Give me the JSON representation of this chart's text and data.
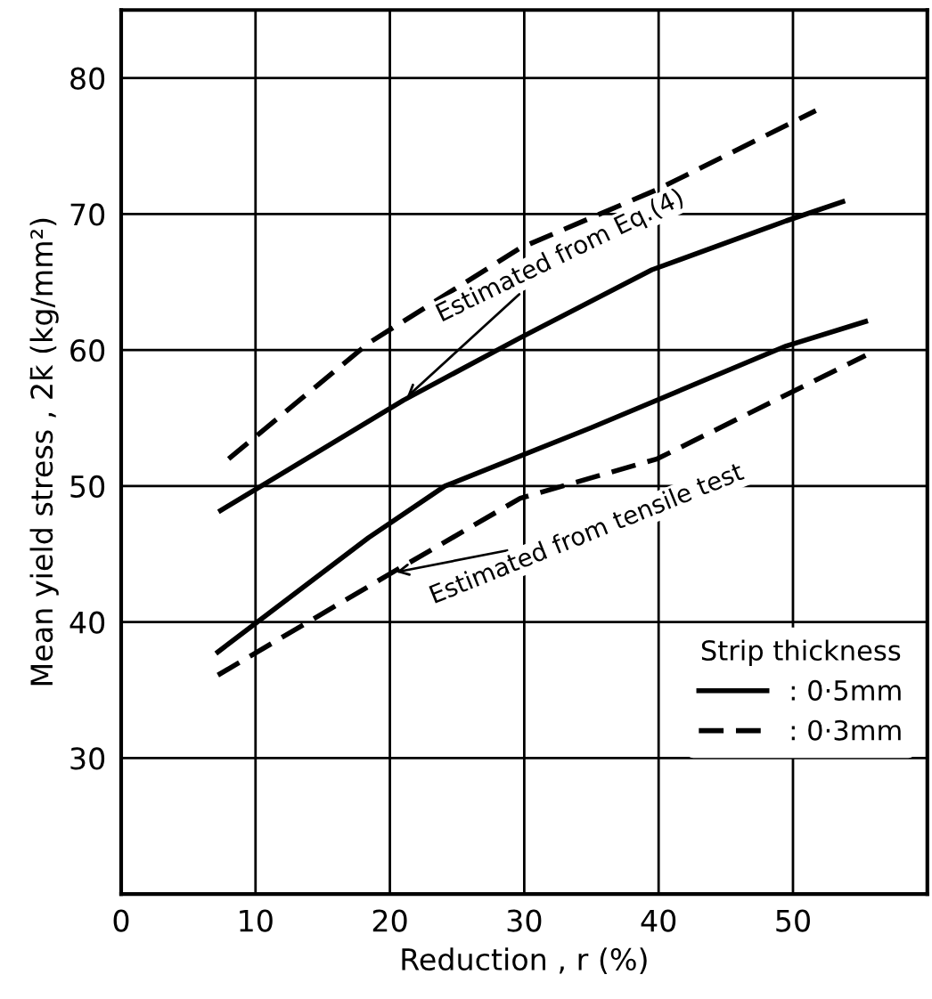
{
  "chart_data": {
    "type": "line",
    "xlabel": "Reduction , r (%)",
    "ylabel": "Mean yield stress , 2k̄ (kg/mm²)",
    "xlim": [
      0,
      60
    ],
    "ylim": [
      20,
      85
    ],
    "xticks": [
      0,
      10,
      20,
      30,
      40,
      50
    ],
    "yticks": [
      30,
      40,
      50,
      60,
      70,
      80
    ],
    "grid": true,
    "legend": "bottom right",
    "legend_title": "Strip thickness",
    "marker": "none",
    "series": [
      {
        "name": ": 0·5mm",
        "color": "#000000",
        "line_style": "solid",
        "x": [
          7.4,
          21,
          29.7,
          39.5,
          49.5,
          53.7
        ],
        "values": [
          48.2,
          56.3,
          60.9,
          65.9,
          69.5,
          70.9
        ]
      },
      {
        "name": ": 0·3mm",
        "color": "#000000",
        "line_style": "dashed",
        "x": [
          8.0,
          18.4,
          29.7,
          39.9,
          51.7
        ],
        "values": [
          52.0,
          60.5,
          67.5,
          71.8,
          77.6
        ]
      },
      {
        "color": "#000000",
        "line_style": "solid",
        "x": [
          7.2,
          18.4,
          24.1,
          35,
          49.5,
          55.4
        ],
        "values": [
          37.8,
          46.2,
          50.0,
          54.3,
          60.3,
          62.1
        ]
      },
      {
        "color": "#000000",
        "line_style": "dashed",
        "x": [
          7.2,
          20.1,
          29.7,
          39.9,
          55.4
        ],
        "values": [
          36.1,
          43.6,
          49.1,
          52.0,
          59.6
        ]
      }
    ],
    "annotations": [
      {
        "text": "Estimated from Eq.(4)",
        "x": 21,
        "y": 56.3
      },
      {
        "text": "Estimated from tensile test",
        "x": 20.1,
        "y": 43.6
      }
    ]
  }
}
